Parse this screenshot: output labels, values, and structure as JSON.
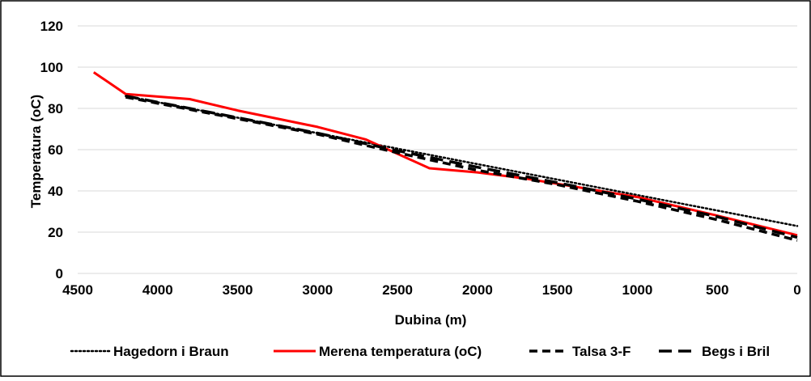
{
  "chart_data": {
    "type": "line",
    "title": "",
    "xlabel": "Dubina (m)",
    "ylabel": "Temperatura (oC)",
    "xlim": [
      4500,
      0
    ],
    "ylim": [
      0,
      120
    ],
    "x_reversed": true,
    "x_ticks": [
      "4500",
      "4000",
      "3500",
      "3000",
      "2500",
      "2000",
      "1500",
      "1000",
      "500",
      "0"
    ],
    "y_ticks": [
      "0",
      "20",
      "40",
      "60",
      "80",
      "100",
      "120"
    ],
    "grid": "horizontal",
    "legend_position": "bottom",
    "series": [
      {
        "name": "Hagedorn i Braun",
        "color": "#000000",
        "style": "dotted",
        "x": [
          4200,
          0
        ],
        "y": [
          86,
          23
        ]
      },
      {
        "name": "Merena temperatura (oC)",
        "color": "#ff0000",
        "style": "solid",
        "x": [
          4400,
          4200,
          3800,
          3500,
          3000,
          2700,
          2500,
          2300,
          2000,
          1700,
          1000,
          500,
          0
        ],
        "y": [
          97.5,
          87,
          84.5,
          79,
          71,
          65,
          58,
          51,
          49,
          46,
          37,
          28,
          18.5
        ]
      },
      {
        "name": "Talsa 3-F",
        "color": "#000000",
        "style": "dashed",
        "x": [
          4200,
          3000,
          2500,
          2000,
          1500,
          1000,
          500,
          0
        ],
        "y": [
          85.5,
          67.5,
          58.5,
          50,
          43,
          35,
          26,
          16
        ]
      },
      {
        "name": "Begs i Bril",
        "color": "#000000",
        "style": "long-dashed",
        "x": [
          4200,
          3000,
          2500,
          2000,
          1500,
          1000,
          500,
          0
        ],
        "y": [
          86,
          68,
          59.5,
          51.5,
          44,
          36,
          27.5,
          17.5
        ]
      }
    ]
  }
}
